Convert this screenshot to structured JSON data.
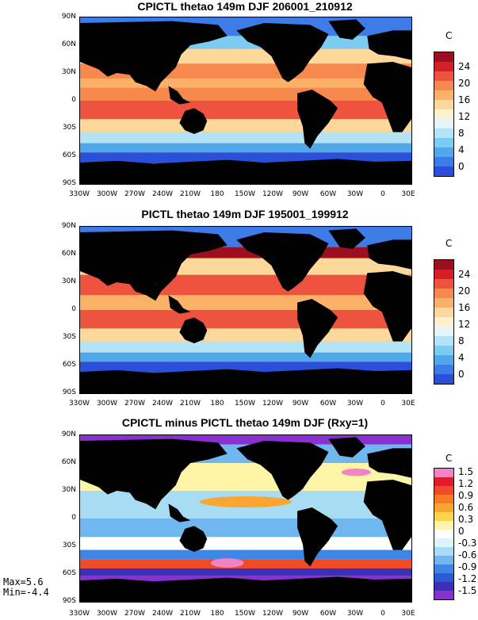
{
  "lat_labels": [
    "90N",
    "60N",
    "30N",
    "0",
    "30S",
    "60S",
    "90S"
  ],
  "lon_labels": [
    "330W",
    "300W",
    "270W",
    "240W",
    "210W",
    "180",
    "150W",
    "120W",
    "90W",
    "60W",
    "30W",
    "0",
    "30E"
  ],
  "panels": [
    {
      "title": "CPICTL thetao 149m DJF 206001_210912",
      "unit": "C",
      "colorbar_labels": [
        "24",
        "20",
        "16",
        "12",
        "8",
        "4",
        "0"
      ],
      "colors": [
        "#9b0f1e",
        "#d32027",
        "#ee5340",
        "#f7894f",
        "#fbb168",
        "#fdd89b",
        "#fff1cc",
        "#e6f5fa",
        "#b2e4f5",
        "#7ccbf0",
        "#4fa7ec",
        "#3d7be6",
        "#2a4fd8",
        "#1b24c4"
      ]
    },
    {
      "title": "PICTL thetao 149m DJF 195001_199912",
      "unit": "C",
      "colorbar_labels": [
        "24",
        "20",
        "16",
        "12",
        "8",
        "4",
        "0"
      ],
      "colors": [
        "#9b0f1e",
        "#d32027",
        "#ee5340",
        "#f7894f",
        "#fbb168",
        "#fdd89b",
        "#fff1cc",
        "#e6f5fa",
        "#b2e4f5",
        "#7ccbf0",
        "#4fa7ec",
        "#3d7be6",
        "#2a4fd8",
        "#1b24c4"
      ]
    },
    {
      "title": "CPICTL minus PICTL thetao 149m DJF (Rxy=1)",
      "unit": "C",
      "colorbar_labels": [
        "1.5",
        "1.2",
        "0.9",
        "0.6",
        "0.3",
        "0",
        "-0.3",
        "-0.6",
        "-0.9",
        "-1.2",
        "-1.5"
      ],
      "colors": [
        "#f483c6",
        "#e01b2c",
        "#f04a2a",
        "#f77b22",
        "#fba533",
        "#fdd34c",
        "#fff5a8",
        "#ffffff",
        "#dff3fa",
        "#a8dcf3",
        "#6fb7ee",
        "#3e86e6",
        "#2d58d6",
        "#3b2fb8",
        "#8a2fd0"
      ]
    }
  ],
  "stats": {
    "max": "Max=5.6",
    "min": "Min=-4.4"
  }
}
